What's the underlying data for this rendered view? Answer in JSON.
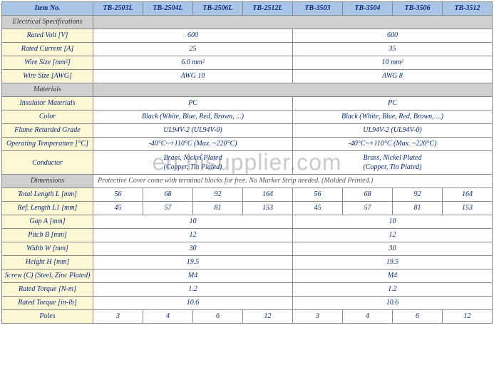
{
  "header": {
    "item_no": "Item No.",
    "products": [
      "TB-2503L",
      "TB-2504L",
      "TB-2506L",
      "TB-2512L",
      "TB-3503",
      "TB-3504",
      "TB-3506",
      "TB-3512"
    ]
  },
  "sections": {
    "electrical": "Electrical Specifications",
    "materials": "Materials",
    "dimensions": "Dimensions"
  },
  "rows": {
    "rated_volt": {
      "label": "Rated Volt [V]",
      "g1": "600",
      "g2": "600"
    },
    "rated_current": {
      "label": "Rated Current [A]",
      "g1": "25",
      "g2": "35"
    },
    "wire_size_mm": {
      "label": "Wire Size [mm²]",
      "g1": "6.0 mm²",
      "g2": "10 mm²"
    },
    "wire_size_awg": {
      "label": "Wire Size [AWG]",
      "g1": "AWG 10",
      "g2": "AWG 8"
    },
    "insulator": {
      "label": "Insulator Materials",
      "g1": "PC",
      "g2": "PC"
    },
    "color": {
      "label": "Color",
      "g1": "Black (White, Blue, Red, Brown, ...)",
      "g2": "Black (White, Blue, Red, Brown, ...)"
    },
    "flame": {
      "label": "Flame Retarded Grade",
      "g1": "UL94V-2 (UL94V-0)",
      "g2": "UL94V-2 (UL94V-0)"
    },
    "op_temp": {
      "label": "Operating Temperature [°C]",
      "g1": "-40°C~+110°C (Max. ~220°C)",
      "g2": "-40°C~+110°C (Max. ~220°C)"
    },
    "conductor": {
      "label": "Conductor",
      "g1_l1": "Brass, Nickel Plated",
      "g1_l2": "(Copper, Tin Plated)",
      "g2_l1": "Brass, Nickel Plated",
      "g2_l2": "(Copper, Tin Plated)"
    },
    "dimensions_note": "Protective Cover come with terminal blocks for free. No Marker Strip needed. (Molded Printed.)",
    "total_length": {
      "label": "Total Length L [mm]",
      "v": [
        "56",
        "68",
        "92",
        "164",
        "56",
        "68",
        "92",
        "164"
      ]
    },
    "ref_length": {
      "label": "Ref. Length L1 [mm]",
      "v": [
        "45",
        "57",
        "81",
        "153",
        "45",
        "57",
        "81",
        "153"
      ]
    },
    "gap": {
      "label": "Gap A [mm]",
      "g1": "10",
      "g2": "10"
    },
    "pitch": {
      "label": "Pitch B [mm]",
      "g1": "12",
      "g2": "12"
    },
    "width": {
      "label": "Width W [mm]",
      "g1": "30",
      "g2": "30"
    },
    "height": {
      "label": "Height H [mm]",
      "g1": "19.5",
      "g2": "19.5"
    },
    "screw": {
      "label": "Screw (C) (Steel, Zinc Plated)",
      "g1": "M4",
      "g2": "M4"
    },
    "torque_nm": {
      "label": "Rated Torque [N-m]",
      "g1": "1.2",
      "g2": "1.2"
    },
    "torque_inlb": {
      "label": "Rated Torque [in-lb]",
      "g1": "10.6",
      "g2": "10.6"
    },
    "poles": {
      "label": "Poles",
      "v": [
        "3",
        "4",
        "6",
        "12",
        "3",
        "4",
        "6",
        "12"
      ]
    }
  },
  "watermark": "en.hisupplier.com",
  "colors": {
    "header_bg": "#a9c5e8",
    "section_bg": "#d0d0d0",
    "label_bg": "#fcf8d6",
    "text_blue": "#0a2a7a"
  }
}
